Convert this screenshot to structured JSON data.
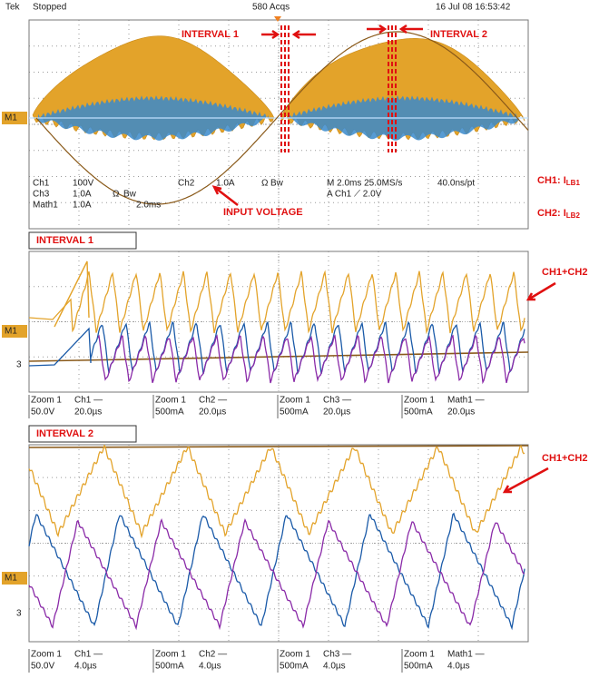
{
  "header": {
    "brand": "Tek",
    "status": "Stopped",
    "acquisitions": "580 Acqs",
    "timestamp": "16 Jul 08 16:53:42"
  },
  "overview": {
    "annotations": {
      "interval_1": "INTERVAL 1",
      "interval_2": "INTERVAL 2",
      "input_voltage": "INPUT VOLTAGE"
    },
    "readouts": [
      "Ch1",
      "100V",
      "Ch2",
      "1.0A",
      "Ω",
      "Bw",
      "M 2.0ms 25.0MS/s",
      "40.0ns/pt",
      "Ch3",
      "1.0A",
      "Ω",
      "Bw",
      "A  Ch1  ⟋  2.0V",
      "Math1",
      "1.0A",
      "2.0ms"
    ]
  },
  "legend": [
    {
      "label": "CH1: I",
      "subscript": "LB1"
    },
    {
      "label": "CH2: I",
      "subscript": "LB2"
    }
  ],
  "markers": {
    "math": "M1",
    "ch3": "3"
  },
  "panels": [
    {
      "title": "INTERVAL 1",
      "annotation": "CH1+CH2",
      "zoom_readouts": [
        {
          "zoom": "Zoom 1",
          "channel": "Ch1 —",
          "scale": "50.0V",
          "time": "20.0µs"
        },
        {
          "zoom": "Zoom 1",
          "channel": "Ch2 —",
          "scale": "500mA",
          "time": "20.0µs"
        },
        {
          "zoom": "Zoom 1",
          "channel": "Ch3 —",
          "scale": "500mA",
          "time": "20.0µs"
        },
        {
          "zoom": "Zoom 1",
          "channel": "Math1 —",
          "scale": "500mA",
          "time": "20.0µs"
        }
      ]
    },
    {
      "title": "INTERVAL 2",
      "annotation": "CH1+CH2",
      "zoom_readouts": [
        {
          "zoom": "Zoom 1",
          "channel": "Ch1 —",
          "scale": "50.0V",
          "time": "4.0µs"
        },
        {
          "zoom": "Zoom 1",
          "channel": "Ch2 —",
          "scale": "500mA",
          "time": "4.0µs"
        },
        {
          "zoom": "Zoom 1",
          "channel": "Ch3 —",
          "scale": "500mA",
          "time": "4.0µs"
        },
        {
          "zoom": "Zoom 1",
          "channel": "Math1 —",
          "scale": "500mA",
          "time": "4.0µs"
        }
      ]
    }
  ]
}
